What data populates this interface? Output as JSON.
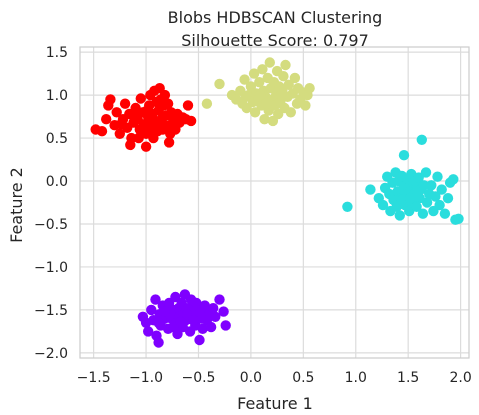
{
  "chart_data": {
    "type": "scatter",
    "title": "Blobs HDBSCAN Clustering",
    "subtitle": "Silhouette Score: 0.797",
    "xlabel": "Feature 1",
    "ylabel": "Feature 2",
    "xlim": [
      -1.63,
      2.08
    ],
    "ylim": [
      -2.06,
      1.56
    ],
    "xticks": [
      -1.5,
      -1.0,
      -0.5,
      0.0,
      0.5,
      1.0,
      1.5,
      2.0
    ],
    "xtick_labels": [
      "−1.5",
      "−1.0",
      "−0.5",
      "0.0",
      "0.5",
      "1.0",
      "1.5",
      "2.0"
    ],
    "yticks": [
      1.5,
      1.0,
      0.5,
      0.0,
      -0.5,
      -1.0,
      -1.5,
      -2.0
    ],
    "ytick_labels": [
      "1.5",
      "1.0",
      "0.5",
      "0.0",
      "−0.5",
      "−1.0",
      "−1.5",
      "−2.0"
    ],
    "grid": true,
    "legend": "none",
    "series": [
      {
        "color": "#ff0000",
        "points": [
          [
            -1.48,
            0.6
          ],
          [
            -1.42,
            0.58
          ],
          [
            -1.38,
            0.72
          ],
          [
            -1.36,
            0.88
          ],
          [
            -1.34,
            0.95
          ],
          [
            -1.3,
            0.65
          ],
          [
            -1.28,
            0.8
          ],
          [
            -1.25,
            0.55
          ],
          [
            -1.22,
            0.72
          ],
          [
            -1.2,
            0.9
          ],
          [
            -1.18,
            0.62
          ],
          [
            -1.16,
            0.78
          ],
          [
            -1.14,
            0.5
          ],
          [
            -1.12,
            0.68
          ],
          [
            -1.1,
            0.85
          ],
          [
            -1.08,
            0.72
          ],
          [
            -1.06,
            0.6
          ],
          [
            -1.05,
            0.96
          ],
          [
            -1.03,
            0.8
          ],
          [
            -1.02,
            0.66
          ],
          [
            -1.0,
            0.55
          ],
          [
            -0.98,
            0.74
          ],
          [
            -0.97,
            0.88
          ],
          [
            -0.96,
            1.0
          ],
          [
            -0.95,
            0.64
          ],
          [
            -0.94,
            0.78
          ],
          [
            -0.92,
            1.05
          ],
          [
            -0.91,
            0.7
          ],
          [
            -0.9,
            0.92
          ],
          [
            -0.89,
            0.58
          ],
          [
            -0.88,
            0.82
          ],
          [
            -0.87,
            1.08
          ],
          [
            -0.86,
            0.95
          ],
          [
            -0.85,
            0.72
          ],
          [
            -0.84,
            0.6
          ],
          [
            -0.83,
            0.88
          ],
          [
            -0.82,
            1.0
          ],
          [
            -0.81,
            0.76
          ],
          [
            -0.8,
            0.64
          ],
          [
            -0.79,
            0.9
          ],
          [
            -0.78,
            0.45
          ],
          [
            -0.77,
            0.55
          ],
          [
            -0.76,
            0.8
          ],
          [
            -0.74,
            0.7
          ],
          [
            -0.72,
            0.6
          ],
          [
            -0.7,
            0.78
          ],
          [
            -0.68,
            0.68
          ],
          [
            -0.65,
            0.74
          ],
          [
            -0.62,
            0.72
          ],
          [
            -0.6,
            0.88
          ],
          [
            -0.57,
            0.7
          ],
          [
            -1.24,
            0.66
          ],
          [
            -1.15,
            0.42
          ],
          [
            -1.0,
            0.4
          ],
          [
            -0.93,
            0.5
          ],
          [
            -1.1,
            0.75
          ],
          [
            -0.99,
            0.82
          ],
          [
            -1.07,
            0.5
          ],
          [
            -0.88,
            0.68
          ],
          [
            -0.96,
            0.6
          ]
        ]
      },
      {
        "color": "#d4dc7f",
        "points": [
          [
            -0.42,
            0.9
          ],
          [
            -0.3,
            1.13
          ],
          [
            -0.18,
            1.0
          ],
          [
            -0.14,
            0.95
          ],
          [
            -0.1,
            1.05
          ],
          [
            -0.08,
            0.9
          ],
          [
            -0.06,
            1.18
          ],
          [
            -0.04,
            0.85
          ],
          [
            -0.02,
            1.0
          ],
          [
            0.0,
            1.1
          ],
          [
            0.02,
            0.92
          ],
          [
            0.03,
            1.25
          ],
          [
            0.04,
            0.8
          ],
          [
            0.05,
            1.02
          ],
          [
            0.07,
            0.95
          ],
          [
            0.08,
            1.15
          ],
          [
            0.1,
            0.88
          ],
          [
            0.11,
            1.3
          ],
          [
            0.12,
            1.05
          ],
          [
            0.13,
            0.72
          ],
          [
            0.14,
            0.98
          ],
          [
            0.16,
            1.2
          ],
          [
            0.17,
            0.82
          ],
          [
            0.18,
            1.38
          ],
          [
            0.19,
            1.08
          ],
          [
            0.2,
            0.95
          ],
          [
            0.21,
            0.7
          ],
          [
            0.22,
            1.15
          ],
          [
            0.23,
            0.88
          ],
          [
            0.24,
            1.0
          ],
          [
            0.25,
            1.28
          ],
          [
            0.26,
            0.78
          ],
          [
            0.27,
            1.1
          ],
          [
            0.28,
            0.92
          ],
          [
            0.3,
            1.05
          ],
          [
            0.31,
            1.22
          ],
          [
            0.32,
            0.85
          ],
          [
            0.33,
            1.35
          ],
          [
            0.35,
            0.98
          ],
          [
            0.36,
            1.12
          ],
          [
            0.38,
            0.8
          ],
          [
            0.4,
            1.02
          ],
          [
            0.42,
            1.2
          ],
          [
            0.44,
            0.9
          ],
          [
            0.45,
            1.08
          ],
          [
            0.47,
            0.95
          ],
          [
            0.5,
            1.03
          ],
          [
            0.52,
            0.88
          ],
          [
            0.54,
            1.0
          ],
          [
            0.56,
            1.08
          ],
          [
            -0.05,
            0.98
          ],
          [
            0.09,
            1.0
          ],
          [
            0.15,
            0.9
          ],
          [
            0.29,
            1.0
          ]
        ]
      },
      {
        "color": "#2adddd",
        "points": [
          [
            0.92,
            -0.3
          ],
          [
            1.14,
            -0.1
          ],
          [
            1.22,
            -0.2
          ],
          [
            1.26,
            -0.28
          ],
          [
            1.28,
            -0.08
          ],
          [
            1.3,
            0.05
          ],
          [
            1.32,
            -0.15
          ],
          [
            1.33,
            -0.35
          ],
          [
            1.35,
            -0.02
          ],
          [
            1.36,
            -0.22
          ],
          [
            1.38,
            0.1
          ],
          [
            1.39,
            -0.3
          ],
          [
            1.4,
            -0.12
          ],
          [
            1.41,
            0.0
          ],
          [
            1.42,
            -0.4
          ],
          [
            1.43,
            -0.2
          ],
          [
            1.44,
            0.06
          ],
          [
            1.45,
            -0.1
          ],
          [
            1.46,
            0.3
          ],
          [
            1.47,
            -0.28
          ],
          [
            1.48,
            -0.05
          ],
          [
            1.49,
            -0.18
          ],
          [
            1.5,
            0.02
          ],
          [
            1.51,
            -0.35
          ],
          [
            1.52,
            -0.12
          ],
          [
            1.53,
            0.08
          ],
          [
            1.54,
            -0.25
          ],
          [
            1.55,
            -0.02
          ],
          [
            1.56,
            -0.15
          ],
          [
            1.57,
            0.0
          ],
          [
            1.58,
            -0.3
          ],
          [
            1.59,
            -0.08
          ],
          [
            1.6,
            0.04
          ],
          [
            1.61,
            -0.2
          ],
          [
            1.62,
            -0.1
          ],
          [
            1.63,
            0.48
          ],
          [
            1.64,
            -0.38
          ],
          [
            1.65,
            -0.05
          ],
          [
            1.67,
            0.1
          ],
          [
            1.68,
            -0.25
          ],
          [
            1.7,
            -0.15
          ],
          [
            1.72,
            -0.05
          ],
          [
            1.74,
            -0.35
          ],
          [
            1.76,
            -0.18
          ],
          [
            1.78,
            0.05
          ],
          [
            1.8,
            -0.28
          ],
          [
            1.82,
            -0.1
          ],
          [
            1.85,
            -0.38
          ],
          [
            1.88,
            -0.2
          ],
          [
            1.9,
            -0.02
          ],
          [
            1.93,
            0.02
          ],
          [
            1.95,
            -0.45
          ],
          [
            1.98,
            -0.44
          ],
          [
            1.44,
            -0.22
          ],
          [
            1.52,
            -0.2
          ],
          [
            1.58,
            -0.18
          ]
        ]
      },
      {
        "color": "#7f00ff",
        "points": [
          [
            -1.03,
            -1.58
          ],
          [
            -1.0,
            -1.65
          ],
          [
            -0.98,
            -1.75
          ],
          [
            -0.95,
            -1.5
          ],
          [
            -0.93,
            -1.62
          ],
          [
            -0.91,
            -1.38
          ],
          [
            -0.9,
            -1.8
          ],
          [
            -0.88,
            -1.88
          ],
          [
            -0.87,
            -1.55
          ],
          [
            -0.86,
            -1.68
          ],
          [
            -0.84,
            -1.45
          ],
          [
            -0.82,
            -1.6
          ],
          [
            -0.8,
            -1.52
          ],
          [
            -0.79,
            -1.72
          ],
          [
            -0.78,
            -1.42
          ],
          [
            -0.76,
            -1.6
          ],
          [
            -0.74,
            -1.5
          ],
          [
            -0.72,
            -1.35
          ],
          [
            -0.71,
            -1.65
          ],
          [
            -0.7,
            -1.78
          ],
          [
            -0.69,
            -1.48
          ],
          [
            -0.68,
            -1.58
          ],
          [
            -0.66,
            -1.42
          ],
          [
            -0.65,
            -1.7
          ],
          [
            -0.64,
            -1.55
          ],
          [
            -0.63,
            -1.32
          ],
          [
            -0.62,
            -1.62
          ],
          [
            -0.6,
            -1.48
          ],
          [
            -0.58,
            -1.75
          ],
          [
            -0.57,
            -1.38
          ],
          [
            -0.56,
            -1.58
          ],
          [
            -0.54,
            -1.5
          ],
          [
            -0.53,
            -1.68
          ],
          [
            -0.52,
            -1.42
          ],
          [
            -0.5,
            -1.6
          ],
          [
            -0.49,
            -1.85
          ],
          [
            -0.48,
            -1.52
          ],
          [
            -0.46,
            -1.72
          ],
          [
            -0.44,
            -1.45
          ],
          [
            -0.42,
            -1.62
          ],
          [
            -0.4,
            -1.55
          ],
          [
            -0.38,
            -1.7
          ],
          [
            -0.36,
            -1.48
          ],
          [
            -0.34,
            -1.58
          ],
          [
            -0.3,
            -1.38
          ],
          [
            -0.26,
            -1.52
          ],
          [
            -0.24,
            -1.68
          ],
          [
            -0.88,
            -1.65
          ],
          [
            -0.74,
            -1.7
          ],
          [
            -0.61,
            -1.55
          ],
          [
            -0.47,
            -1.6
          ],
          [
            -0.67,
            -1.64
          ],
          [
            -0.55,
            -1.62
          ],
          [
            -0.82,
            -1.52
          ]
        ]
      }
    ]
  }
}
